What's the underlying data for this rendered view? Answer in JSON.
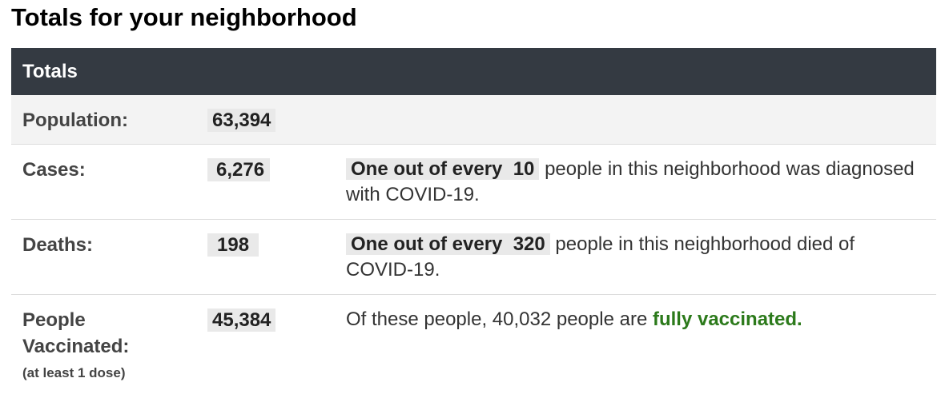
{
  "page_title": "Totals for your neighborhood",
  "table": {
    "header": "Totals",
    "population": {
      "label": "Population:",
      "value": "63,394"
    },
    "cases": {
      "label": "Cases:",
      "value": "6,276",
      "highlight": "One out of every  10",
      "text": " people in this neighborhood was diagnosed with COVID-19."
    },
    "deaths": {
      "label": "Deaths:",
      "value": "198",
      "highlight": "One out of every  320",
      "text": " people in this neighborhood died of COVID-19."
    },
    "vaccinated": {
      "label": "People Vaccinated:",
      "sublabel": "(at least 1 dose)",
      "value": "45,384",
      "text_before": "Of these people, 40,032 people are ",
      "highlight": "fully vaccinated."
    }
  },
  "colors": {
    "header_bg": "#343a42",
    "header_text": "#ffffff",
    "shaded_row": "#f3f3f3",
    "value_chip": "#e9e9e9",
    "accent_green": "#2c7a1b"
  }
}
